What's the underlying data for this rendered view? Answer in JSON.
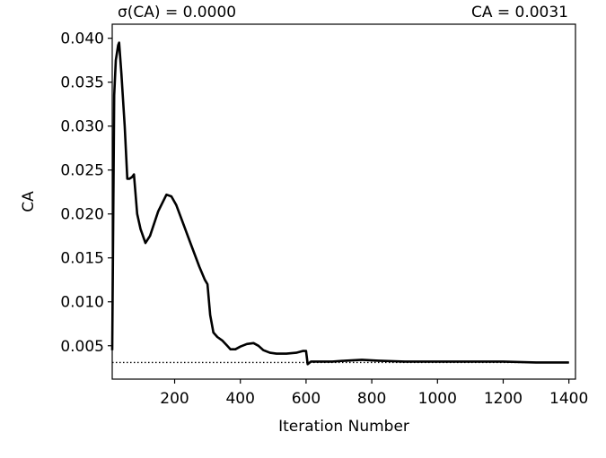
{
  "chart_data": {
    "type": "line",
    "header_left": "σ(CA) = 0.0000",
    "header_right": "CA = 0.0031",
    "xlabel": "Iteration Number",
    "ylabel": "CA",
    "xlim": [
      10,
      1420
    ],
    "ylim": [
      0.0012,
      0.0416
    ],
    "x_ticks": [
      200,
      400,
      600,
      800,
      1000,
      1200,
      1400
    ],
    "x_tick_labels": [
      "200",
      "400",
      "600",
      "800",
      "1000",
      "1200",
      "1400"
    ],
    "y_ticks": [
      0.005,
      0.01,
      0.015,
      0.02,
      0.025,
      0.03,
      0.035,
      0.04
    ],
    "y_tick_labels": [
      "0.005",
      "0.010",
      "0.015",
      "0.020",
      "0.025",
      "0.030",
      "0.035",
      "0.040"
    ],
    "grid": false,
    "series": [
      {
        "style": "solid",
        "color": "#000000",
        "x": [
          10,
          16,
          21,
          28,
          31,
          38,
          48,
          56,
          62,
          70,
          76,
          86,
          96,
          111,
          125,
          150,
          175,
          190,
          205,
          225,
          250,
          275,
          292,
          300,
          308,
          318,
          330,
          345,
          360,
          370,
          385,
          400,
          420,
          440,
          455,
          470,
          490,
          510,
          540,
          570,
          590,
          600,
          605,
          615,
          640,
          680,
          720,
          770,
          820,
          900,
          1000,
          1100,
          1200,
          1300,
          1400
        ],
        "y": [
          0.0045,
          0.0335,
          0.0375,
          0.0392,
          0.0395,
          0.036,
          0.03,
          0.024,
          0.024,
          0.0242,
          0.0245,
          0.02,
          0.0183,
          0.0167,
          0.0175,
          0.0203,
          0.0222,
          0.022,
          0.021,
          0.019,
          0.0165,
          0.014,
          0.0125,
          0.012,
          0.0085,
          0.0065,
          0.006,
          0.0056,
          0.005,
          0.0046,
          0.0046,
          0.0049,
          0.0052,
          0.0053,
          0.005,
          0.0045,
          0.0042,
          0.0041,
          0.0041,
          0.0042,
          0.0044,
          0.0044,
          0.0029,
          0.0032,
          0.0032,
          0.0032,
          0.0033,
          0.0034,
          0.0033,
          0.0032,
          0.0032,
          0.0032,
          0.0032,
          0.0031,
          0.0031
        ]
      },
      {
        "style": "dotted",
        "color": "#000000",
        "x": [
          10,
          1400
        ],
        "y": [
          0.0031,
          0.0031
        ]
      }
    ]
  }
}
